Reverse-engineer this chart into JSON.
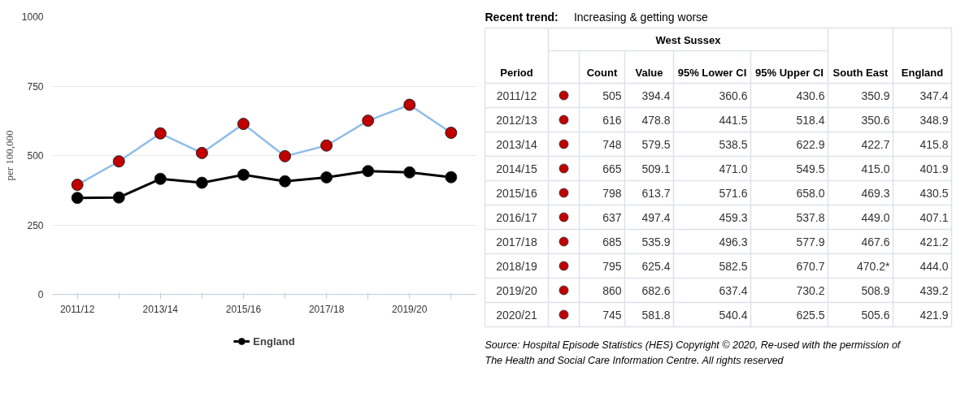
{
  "chart_data": [
    {
      "type": "line",
      "ylabel": "per 100,000",
      "categories": [
        "2011/12",
        null,
        "2013/14",
        null,
        "2015/16",
        null,
        "2017/18",
        null,
        "2019/20",
        null
      ],
      "ylim": [
        0,
        1000
      ],
      "yticks": [
        0,
        250,
        500,
        750,
        1000
      ],
      "grid": "y",
      "legend": "bottom",
      "marker": "circle",
      "line_style": "solid",
      "series": [
        {
          "color": "#8fbde8",
          "colors": [
            "#c00000",
            "#c00000",
            "#c00000",
            "#c00000",
            "#c00000",
            "#c00000",
            "#c00000",
            "#c00000",
            "#c00000",
            "#c00000"
          ],
          "values": [
            394.4,
            478.8,
            579.5,
            509.1,
            613.7,
            497.4,
            535.9,
            625.4,
            682.6,
            581.8
          ]
        },
        {
          "name": "England",
          "color": "#000000",
          "values": [
            347.4,
            348.9,
            415.8,
            401.9,
            430.5,
            407.1,
            421.2,
            444.0,
            439.2,
            421.9
          ]
        }
      ]
    },
    {
      "type": "other",
      "title": "Recent trend:",
      "subtitle": "Increasing & getting worse",
      "xlabel": "Period",
      "categories": [
        "2011/12",
        "2012/13",
        "2013/14",
        "2014/15",
        "2015/16",
        "2016/17",
        "2017/18",
        "2018/19",
        "2019/20",
        "2020/21"
      ],
      "colors": [
        "#c00000",
        "#c00000",
        "#c00000",
        "#c00000",
        "#c00000",
        "#c00000",
        "#c00000",
        "#c00000",
        "#c00000",
        "#c00000"
      ],
      "data_labels": true,
      "annotations": [
        "West Sussex",
        "Source: Hospital Episode Statistics (HES) Copyright © 2020, Re-used with the permission of The Health and Social Care Information Centre. All rights reserved"
      ],
      "series": [
        {
          "name": "Count",
          "values": [
            505,
            616,
            748,
            665,
            798,
            637,
            685,
            795,
            860,
            745
          ]
        },
        {
          "name": "Value",
          "values": [
            394.4,
            478.8,
            579.5,
            509.1,
            613.7,
            497.4,
            535.9,
            625.4,
            682.6,
            581.8
          ]
        },
        {
          "name": "95% Lower CI",
          "values": [
            360.6,
            441.5,
            538.5,
            471.0,
            571.6,
            459.3,
            496.3,
            582.5,
            637.4,
            540.4
          ],
          "value_labels": [
            "360.6",
            "441.5",
            "538.5",
            "471.0",
            "571.6",
            "459.3",
            "496.3",
            "582.5",
            "637.4",
            "540.4"
          ]
        },
        {
          "name": "95% Upper CI",
          "values": [
            430.6,
            518.4,
            622.9,
            549.5,
            658.0,
            537.8,
            577.9,
            670.7,
            730.2,
            625.5
          ],
          "value_labels": [
            "430.6",
            "518.4",
            "622.9",
            "549.5",
            "658.0",
            "537.8",
            "577.9",
            "670.7",
            "730.2",
            "625.5"
          ]
        },
        {
          "name": "South East",
          "values": [
            350.9,
            350.6,
            422.7,
            415.0,
            469.3,
            449.0,
            467.6,
            470.2,
            508.9,
            505.6
          ],
          "value_labels": [
            "350.9",
            "350.6",
            "422.7",
            "415.0",
            "469.3",
            "449.0",
            "467.6",
            "470.2*",
            "508.9",
            "505.6"
          ]
        },
        {
          "name": "England",
          "values": [
            347.4,
            348.9,
            415.8,
            401.9,
            430.5,
            407.1,
            421.2,
            444.0,
            439.2,
            421.9
          ],
          "value_labels": [
            "347.4",
            "348.9",
            "415.8",
            "401.9",
            "430.5",
            "407.1",
            "421.2",
            "444.0",
            "439.2",
            "421.9"
          ]
        }
      ]
    }
  ]
}
